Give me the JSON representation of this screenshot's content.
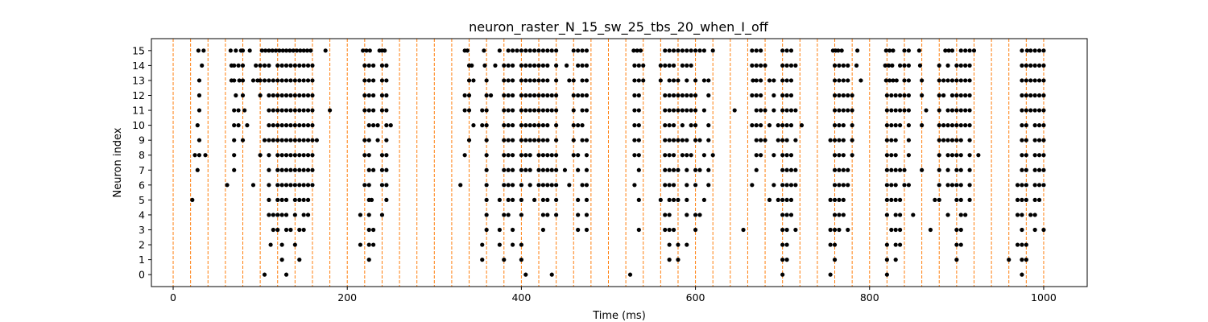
{
  "chart_data": {
    "type": "scatter",
    "title": "neuron_raster_N_15_sw_25_tbs_20_when_I_off",
    "xlabel": "Time (ms)",
    "ylabel": "Neuron index",
    "xlim": [
      -25,
      1050
    ],
    "ylim": [
      -0.8,
      15.8
    ],
    "x_ticks": [
      0,
      200,
      400,
      600,
      800,
      1000
    ],
    "y_ticks": [
      0,
      1,
      2,
      3,
      4,
      5,
      6,
      7,
      8,
      9,
      10,
      11,
      12,
      13,
      14,
      15
    ],
    "grid": false,
    "marker_color": "#000000",
    "vline_color": "#ff7f0e",
    "vlines": [
      0,
      20,
      40,
      60,
      80,
      100,
      120,
      140,
      160,
      180,
      200,
      220,
      240,
      260,
      280,
      300,
      320,
      340,
      360,
      380,
      400,
      420,
      440,
      460,
      480,
      500,
      520,
      540,
      560,
      580,
      600,
      620,
      640,
      660,
      680,
      700,
      720,
      740,
      760,
      780,
      800,
      820,
      840,
      860,
      880,
      900,
      920,
      940,
      960,
      980,
      1000
    ],
    "spikes": [
      {
        "neuron": 15,
        "times": [
          29,
          35,
          66,
          72,
          78,
          80,
          88,
          102,
          106,
          110,
          114,
          118,
          122,
          126,
          130,
          134,
          138,
          142,
          146,
          150,
          154,
          158,
          175,
          218,
          222,
          226,
          237,
          240,
          243,
          335,
          338,
          357,
          375,
          385,
          390,
          395,
          400,
          405,
          410,
          415,
          420,
          425,
          430,
          435,
          440,
          460,
          465,
          470,
          475,
          529,
          533,
          537,
          565,
          570,
          575,
          580,
          585,
          590,
          595,
          600,
          605,
          610,
          620,
          665,
          670,
          675,
          700,
          705,
          710,
          758,
          761,
          764,
          768,
          786,
          819,
          823,
          827,
          840,
          845,
          857,
          887,
          891,
          895,
          905,
          910,
          915,
          920,
          975,
          981,
          985,
          990,
          995,
          1000
        ]
      },
      {
        "neuron": 14,
        "times": [
          33,
          67,
          70,
          75,
          80,
          95,
          100,
          105,
          110,
          120,
          125,
          130,
          135,
          140,
          145,
          150,
          155,
          160,
          220,
          225,
          230,
          240,
          245,
          340,
          343,
          358,
          370,
          380,
          385,
          390,
          400,
          405,
          410,
          415,
          420,
          425,
          430,
          440,
          452,
          465,
          470,
          475,
          530,
          535,
          540,
          560,
          565,
          570,
          575,
          585,
          590,
          595,
          665,
          670,
          675,
          680,
          700,
          705,
          710,
          715,
          760,
          765,
          770,
          775,
          785,
          818,
          822,
          826,
          835,
          840,
          845,
          858,
          880,
          890,
          900,
          905,
          910,
          915,
          975,
          980,
          985,
          990,
          995,
          1000
        ]
      },
      {
        "neuron": 13,
        "times": [
          30,
          67,
          70,
          76,
          80,
          92,
          97,
          100,
          105,
          110,
          115,
          120,
          125,
          130,
          135,
          140,
          145,
          150,
          155,
          160,
          220,
          225,
          230,
          240,
          245,
          340,
          345,
          360,
          380,
          385,
          390,
          400,
          405,
          410,
          415,
          420,
          425,
          430,
          440,
          455,
          460,
          470,
          475,
          530,
          535,
          540,
          560,
          570,
          575,
          580,
          590,
          600,
          610,
          615,
          666,
          670,
          675,
          685,
          690,
          700,
          705,
          710,
          760,
          765,
          770,
          775,
          790,
          819,
          823,
          827,
          831,
          840,
          845,
          860,
          880,
          885,
          890,
          895,
          900,
          905,
          910,
          915,
          975,
          980,
          985,
          990,
          995,
          1000
        ]
      },
      {
        "neuron": 12,
        "times": [
          30,
          72,
          80,
          100,
          110,
          115,
          120,
          125,
          130,
          135,
          140,
          145,
          150,
          155,
          160,
          220,
          225,
          230,
          240,
          245,
          335,
          340,
          360,
          365,
          380,
          385,
          390,
          400,
          405,
          410,
          415,
          420,
          425,
          430,
          435,
          440,
          460,
          465,
          470,
          475,
          530,
          535,
          565,
          570,
          575,
          580,
          585,
          590,
          595,
          600,
          615,
          665,
          670,
          675,
          690,
          700,
          705,
          710,
          760,
          765,
          770,
          775,
          780,
          820,
          825,
          830,
          835,
          840,
          845,
          860,
          880,
          885,
          895,
          900,
          905,
          910,
          915,
          975,
          980,
          985,
          990,
          995,
          1000
        ]
      },
      {
        "neuron": 11,
        "times": [
          30,
          70,
          75,
          82,
          110,
          115,
          120,
          125,
          130,
          135,
          140,
          145,
          150,
          155,
          160,
          180,
          220,
          225,
          230,
          240,
          245,
          335,
          340,
          355,
          360,
          380,
          385,
          390,
          400,
          405,
          410,
          415,
          420,
          425,
          430,
          435,
          440,
          460,
          470,
          475,
          530,
          535,
          565,
          570,
          575,
          580,
          585,
          590,
          595,
          600,
          610,
          645,
          670,
          675,
          680,
          690,
          700,
          705,
          710,
          715,
          760,
          765,
          770,
          775,
          780,
          820,
          825,
          830,
          835,
          840,
          845,
          865,
          880,
          890,
          895,
          900,
          905,
          910,
          915,
          975,
          980,
          985,
          990,
          995,
          1000
        ]
      },
      {
        "neuron": 10,
        "times": [
          28,
          70,
          75,
          85,
          110,
          115,
          120,
          125,
          130,
          135,
          140,
          145,
          150,
          155,
          160,
          225,
          230,
          235,
          245,
          250,
          345,
          355,
          360,
          380,
          385,
          390,
          400,
          405,
          410,
          415,
          420,
          425,
          430,
          440,
          460,
          465,
          470,
          530,
          535,
          565,
          570,
          575,
          585,
          595,
          600,
          615,
          665,
          670,
          675,
          685,
          695,
          700,
          705,
          710,
          722,
          760,
          765,
          770,
          780,
          820,
          825,
          830,
          835,
          845,
          860,
          880,
          885,
          890,
          895,
          900,
          905,
          910,
          915,
          975,
          980,
          990,
          995,
          1000
        ]
      },
      {
        "neuron": 9,
        "times": [
          30,
          70,
          80,
          105,
          110,
          115,
          120,
          125,
          130,
          135,
          140,
          145,
          150,
          155,
          160,
          165,
          220,
          225,
          235,
          245,
          340,
          360,
          380,
          385,
          390,
          400,
          405,
          410,
          415,
          420,
          425,
          430,
          440,
          460,
          470,
          475,
          530,
          535,
          565,
          570,
          575,
          580,
          585,
          590,
          600,
          605,
          615,
          670,
          675,
          680,
          695,
          700,
          705,
          715,
          755,
          760,
          765,
          770,
          780,
          820,
          825,
          830,
          845,
          880,
          885,
          890,
          895,
          900,
          905,
          915,
          975,
          980,
          990,
          995,
          1000
        ]
      },
      {
        "neuron": 8,
        "times": [
          25,
          30,
          37,
          70,
          100,
          110,
          120,
          125,
          130,
          135,
          140,
          145,
          150,
          155,
          160,
          220,
          225,
          240,
          245,
          335,
          360,
          380,
          385,
          390,
          400,
          405,
          410,
          420,
          425,
          430,
          435,
          440,
          460,
          465,
          475,
          530,
          535,
          565,
          570,
          575,
          585,
          590,
          595,
          610,
          620,
          670,
          675,
          690,
          700,
          705,
          710,
          760,
          765,
          770,
          780,
          820,
          825,
          830,
          845,
          880,
          890,
          895,
          900,
          905,
          915,
          925,
          975,
          980,
          990,
          995,
          1000
        ]
      },
      {
        "neuron": 7,
        "times": [
          28,
          70,
          110,
          120,
          125,
          130,
          135,
          140,
          145,
          150,
          155,
          160,
          225,
          230,
          240,
          245,
          360,
          380,
          385,
          390,
          400,
          405,
          410,
          420,
          425,
          430,
          435,
          440,
          450,
          465,
          475,
          535,
          565,
          570,
          575,
          580,
          590,
          600,
          605,
          615,
          670,
          700,
          705,
          710,
          715,
          760,
          765,
          770,
          775,
          820,
          825,
          830,
          835,
          840,
          860,
          880,
          890,
          900,
          905,
          915,
          975,
          980,
          990,
          995,
          1000
        ]
      },
      {
        "neuron": 6,
        "times": [
          62,
          92,
          110,
          120,
          125,
          130,
          135,
          140,
          145,
          150,
          155,
          160,
          220,
          225,
          240,
          245,
          330,
          360,
          380,
          385,
          390,
          400,
          410,
          420,
          425,
          430,
          435,
          440,
          455,
          470,
          475,
          530,
          565,
          570,
          575,
          590,
          600,
          615,
          665,
          690,
          700,
          705,
          710,
          715,
          760,
          765,
          770,
          775,
          820,
          825,
          830,
          840,
          845,
          880,
          890,
          895,
          900,
          905,
          915,
          970,
          975,
          980,
          990,
          995,
          1000
        ]
      },
      {
        "neuron": 5,
        "times": [
          22,
          110,
          120,
          125,
          130,
          140,
          145,
          150,
          155,
          225,
          228,
          245,
          360,
          375,
          385,
          390,
          400,
          415,
          425,
          430,
          440,
          465,
          475,
          535,
          560,
          570,
          575,
          580,
          590,
          610,
          685,
          695,
          700,
          705,
          710,
          755,
          760,
          765,
          770,
          820,
          825,
          830,
          835,
          875,
          880,
          900,
          905,
          915,
          970,
          975,
          980,
          990,
          995
        ]
      },
      {
        "neuron": 4,
        "times": [
          110,
          115,
          120,
          125,
          130,
          140,
          150,
          155,
          215,
          225,
          240,
          360,
          380,
          385,
          400,
          425,
          430,
          440,
          465,
          475,
          565,
          570,
          590,
          600,
          605,
          700,
          705,
          710,
          760,
          765,
          770,
          820,
          830,
          835,
          850,
          890,
          905,
          910,
          970,
          975,
          985,
          990
        ]
      },
      {
        "neuron": 3,
        "times": [
          115,
          120,
          130,
          135,
          145,
          150,
          225,
          230,
          360,
          375,
          390,
          425,
          465,
          475,
          535,
          565,
          570,
          575,
          600,
          655,
          700,
          705,
          715,
          755,
          760,
          765,
          775,
          825,
          830,
          835,
          870,
          900,
          905,
          975,
          990,
          1000
        ]
      },
      {
        "neuron": 2,
        "times": [
          112,
          125,
          140,
          215,
          225,
          230,
          355,
          375,
          390,
          400,
          570,
          580,
          590,
          700,
          705,
          755,
          760,
          820,
          830,
          835,
          900,
          905,
          970,
          975,
          980
        ]
      },
      {
        "neuron": 1,
        "times": [
          125,
          145,
          225,
          355,
          380,
          400,
          570,
          580,
          700,
          705,
          760,
          820,
          830,
          900,
          960,
          975,
          980
        ]
      },
      {
        "neuron": 0,
        "times": [
          105,
          130,
          405,
          435,
          525,
          700,
          755,
          820,
          975
        ]
      }
    ]
  }
}
